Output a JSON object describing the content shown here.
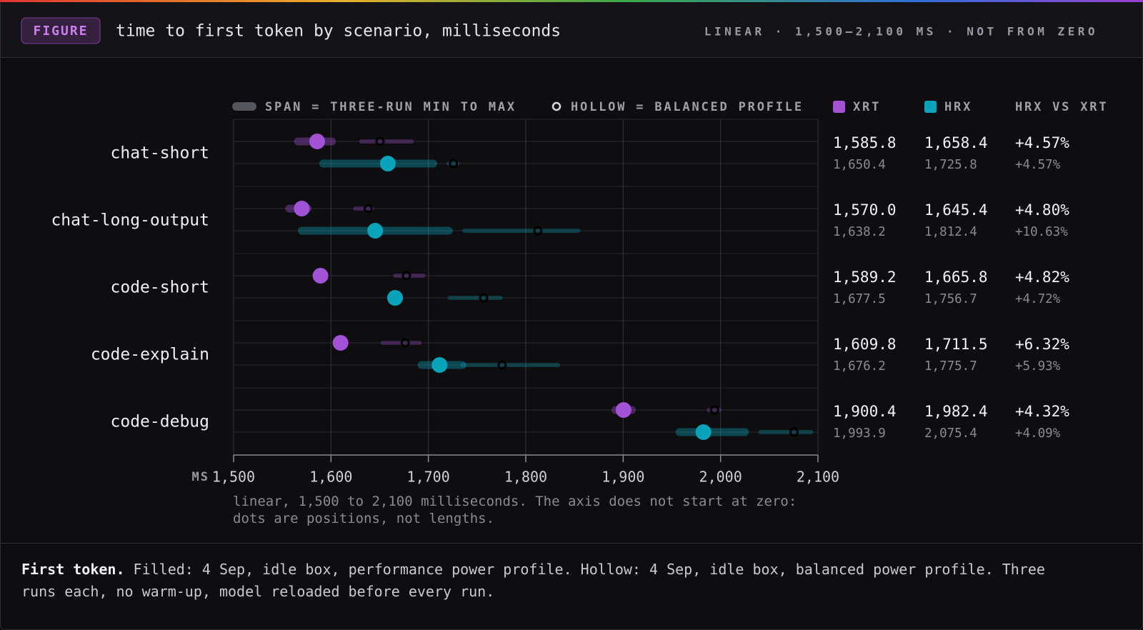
{
  "chart_data": {
    "type": "dot-range",
    "badge": "FIGURE",
    "title": "time to first token by scenario, milliseconds",
    "scale_note": "LINEAR · 1,500–2,100 MS · NOT FROM ZERO",
    "legend_span": "SPAN = THREE-RUN MIN TO MAX",
    "legend_hollow": "HOLLOW = BALANCED PROFILE",
    "xlabel": "MS",
    "note": "linear, 1,500 to 2,100 milliseconds. The axis does not start at zero: dots are positions, not lengths.",
    "caption_lead": "First token.",
    "caption": "Filled: 4 Sep, idle box, performance power profile. Hollow: 4 Sep, idle box, balanced power profile. Three runs each, no warm-up, model reloaded before every run.",
    "categories": [
      "chat-short",
      "chat-long-output",
      "code-short",
      "code-explain",
      "code-debug"
    ],
    "xlim": [
      1500,
      2100
    ],
    "xticks": [
      {
        "value": 1500,
        "label": "1,500"
      },
      {
        "value": 1600,
        "label": "1,600"
      },
      {
        "value": 1700,
        "label": "1,700"
      },
      {
        "value": 1800,
        "label": "1,800"
      },
      {
        "value": 1900,
        "label": "1,900"
      },
      {
        "value": 2000,
        "label": "2,000"
      },
      {
        "value": 2100,
        "label": "2,100"
      }
    ],
    "grid": true,
    "series": [
      {
        "name": "XRT",
        "color": "#a352d6",
        "values": [
          1585.8,
          1570.0,
          1589.2,
          1609.8,
          1900.4
        ],
        "value_labels": [
          "1,585.8",
          "1,570.0",
          "1,589.2",
          "1,609.8",
          "1,900.4"
        ],
        "min": [
          1566,
          1557,
          1586,
          1606,
          1892
        ],
        "max": [
          1601,
          1576,
          1592,
          1613,
          1909
        ],
        "balanced": [
          1650.4,
          1638.2,
          1677.5,
          1676.2,
          1993.9
        ],
        "balanced_labels": [
          "1,650.4",
          "1,638.2",
          "1,677.5",
          "1,676.2",
          "1,993.9"
        ],
        "balanced_min": [
          1631,
          1625,
          1666,
          1653,
          1988
        ],
        "balanced_max": [
          1683,
          1642,
          1695,
          1691,
          1999
        ]
      },
      {
        "name": "HRX",
        "color": "#0aa4ba",
        "values": [
          1658.4,
          1645.4,
          1665.8,
          1711.5,
          1982.4
        ],
        "value_labels": [
          "1,658.4",
          "1,645.4",
          "1,665.8",
          "1,711.5",
          "1,982.4"
        ],
        "min": [
          1592,
          1570,
          1662,
          1693,
          1958
        ],
        "max": [
          1705,
          1721,
          1669,
          1735,
          2025
        ],
        "balanced": [
          1725.8,
          1812.4,
          1756.7,
          1775.7,
          2075.4
        ],
        "balanced_labels": [
          "1,725.8",
          "1,812.4",
          "1,756.7",
          "1,775.7",
          "2,075.4"
        ],
        "balanced_min": [
          1721,
          1737,
          1722,
          1735,
          2041
        ],
        "balanced_max": [
          1730,
          1854,
          1774,
          1833,
          2093
        ]
      }
    ],
    "diff": {
      "name": "HRX VS XRT",
      "values": [
        4.57,
        4.8,
        4.82,
        6.32,
        4.32
      ],
      "value_labels": [
        "+4.57%",
        "+4.80%",
        "+4.82%",
        "+6.32%",
        "+4.32%"
      ],
      "balanced": [
        4.57,
        10.63,
        4.72,
        5.93,
        4.09
      ],
      "balanced_labels": [
        "+4.57%",
        "+10.63%",
        "+4.72%",
        "+5.93%",
        "+4.09%"
      ]
    }
  }
}
